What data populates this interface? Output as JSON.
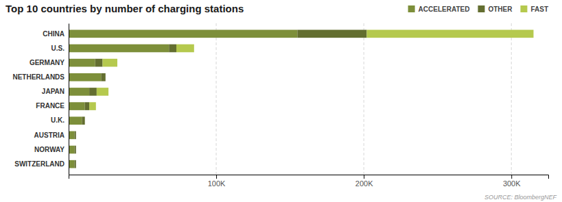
{
  "chart_data": {
    "type": "bar",
    "orientation": "horizontal",
    "stacked": true,
    "title": "Top 10 countries by number of charging stations",
    "annotations": [
      "SOURCE: BloombergNEF"
    ],
    "categories": [
      "CHINA",
      "U.S.",
      "GERMANY",
      "NETHERLANDS",
      "JAPAN",
      "FRANCE",
      "U.K.",
      "AUSTRIA",
      "NORWAY",
      "SWITZERLAND"
    ],
    "series": [
      {
        "name": "ACCELERATED",
        "color": "#7d8f3a",
        "values": [
          155000,
          68000,
          18000,
          22000,
          14000,
          11000,
          9000,
          4000,
          4000,
          4000
        ]
      },
      {
        "name": "OTHER",
        "color": "#636e30",
        "values": [
          47000,
          5000,
          5000,
          3000,
          5000,
          3000,
          2000,
          1000,
          1000,
          1000
        ]
      },
      {
        "name": "FAST",
        "color": "#b5c94e",
        "values": [
          113000,
          12000,
          10000,
          0,
          8000,
          4500,
          0,
          0,
          0,
          0
        ]
      }
    ],
    "xlim": [
      0,
      325000
    ],
    "xticks": [
      {
        "value": 100000,
        "label": "100K"
      },
      {
        "value": 200000,
        "label": "200K"
      },
      {
        "value": 300000,
        "label": "300K"
      }
    ],
    "grid": true,
    "legend": "top-right"
  }
}
